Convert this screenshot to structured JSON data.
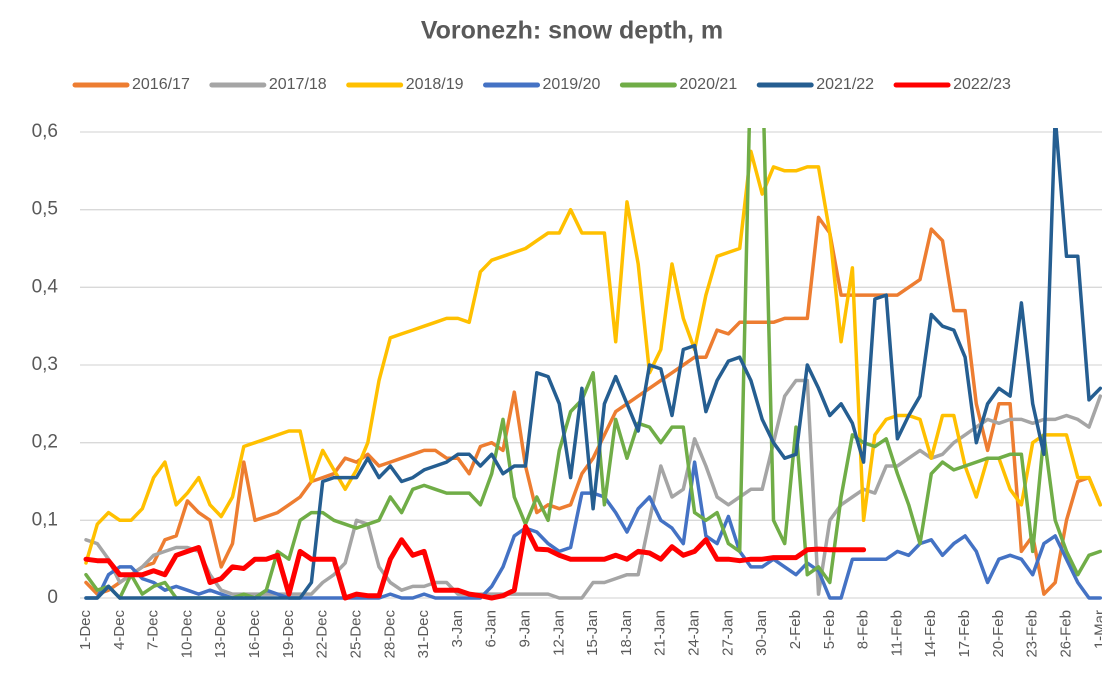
{
  "chart_data": {
    "type": "line",
    "title": "Voronezh: snow depth, m",
    "categories": [
      "1-Dec",
      null,
      null,
      "4-Dec",
      null,
      null,
      "7-Dec",
      null,
      null,
      "10-Dec",
      null,
      null,
      "13-Dec",
      null,
      null,
      "16-Dec",
      null,
      null,
      "19-Dec",
      null,
      null,
      "22-Dec",
      null,
      null,
      "25-Dec",
      null,
      null,
      "28-Dec",
      null,
      null,
      "31-Dec",
      null,
      null,
      "3-Jan",
      null,
      null,
      "6-Jan",
      null,
      null,
      "9-Jan",
      null,
      null,
      "12-Jan",
      null,
      null,
      "15-Jan",
      null,
      null,
      "18-Jan",
      null,
      null,
      "21-Jan",
      null,
      null,
      "24-Jan",
      null,
      null,
      "27-Jan",
      null,
      null,
      "30-Jan",
      null,
      null,
      "2-Feb",
      null,
      null,
      "5-Feb",
      null,
      null,
      "8-Feb",
      null,
      null,
      "11-Feb",
      null,
      null,
      "14-Feb",
      null,
      null,
      "17-Feb",
      null,
      null,
      "20-Feb",
      null,
      null,
      "23-Feb",
      null,
      null,
      "26-Feb",
      null,
      null,
      "1-Mar"
    ],
    "ylim": [
      0,
      0.6
    ],
    "yticks": [
      0,
      {
        "value": 0.1,
        "label": "0,1"
      },
      {
        "value": 0.2,
        "label": "0,2"
      },
      {
        "value": 0.3,
        "label": "0,3"
      },
      {
        "value": 0.4,
        "label": "0,4"
      },
      {
        "value": 0.5,
        "label": "0,5"
      },
      {
        "value": 0.6,
        "label": "0,6"
      }
    ],
    "grid": true,
    "legend": "top",
    "series": [
      {
        "name": "2016/17",
        "color": "#ed7d31",
        "values": [
          0.02,
          0.005,
          0.01,
          0.02,
          0.03,
          0.04,
          0.045,
          0.075,
          0.08,
          0.125,
          0.11,
          0.1,
          0.04,
          0.07,
          0.175,
          0.1,
          0.105,
          0.11,
          0.12,
          0.13,
          0.15,
          0.155,
          0.16,
          0.18,
          0.175,
          0.185,
          0.17,
          0.175,
          0.18,
          0.185,
          0.19,
          0.19,
          0.18,
          0.18,
          0.16,
          0.195,
          0.2,
          0.19,
          0.265,
          0.17,
          0.11,
          0.12,
          0.115,
          0.12,
          0.16,
          0.18,
          0.21,
          0.24,
          0.25,
          0.26,
          0.27,
          0.28,
          0.29,
          0.3,
          0.31,
          0.31,
          0.345,
          0.34,
          0.355,
          0.355,
          0.355,
          0.355,
          0.36,
          0.36,
          0.36,
          0.49,
          0.47,
          0.39,
          0.39,
          0.39,
          0.39,
          0.39,
          0.39,
          0.4,
          0.41,
          0.475,
          0.46,
          0.37,
          0.37,
          0.25,
          0.19,
          0.25,
          0.25,
          0.06,
          0.08,
          0.005,
          0.02,
          0.1,
          0.15,
          0.155,
          0.12
        ]
      },
      {
        "name": "2017/18",
        "color": "#a5a5a5",
        "values": [
          0.075,
          0.07,
          0.05,
          0.02,
          0.03,
          0.04,
          0.055,
          0.06,
          0.065,
          0.065,
          0.06,
          0.03,
          0.01,
          0.005,
          0.005,
          0.005,
          0.005,
          0.005,
          0.005,
          0.005,
          0.005,
          0.02,
          0.03,
          0.045,
          0.1,
          0.095,
          0.04,
          0.02,
          0.01,
          0.015,
          0.015,
          0.02,
          0.02,
          0.005,
          0.005,
          0.005,
          0.005,
          0.005,
          0.005,
          0.005,
          0.005,
          0.005,
          0,
          0,
          0,
          0.02,
          0.02,
          0.025,
          0.03,
          0.03,
          0.1,
          0.17,
          0.13,
          0.14,
          0.205,
          0.17,
          0.13,
          0.12,
          0.13,
          0.14,
          0.14,
          0.2,
          0.26,
          0.28,
          0.28,
          0.005,
          0.1,
          0.12,
          0.13,
          0.14,
          0.135,
          0.17,
          0.17,
          0.18,
          0.19,
          0.18,
          0.185,
          0.2,
          0.21,
          0.22,
          0.23,
          0.225,
          0.23,
          0.23,
          0.225,
          0.23,
          0.23,
          0.235,
          0.23,
          0.22,
          0.26
        ]
      },
      {
        "name": "2018/19",
        "color": "#ffc000",
        "values": [
          0.045,
          0.095,
          0.11,
          0.1,
          0.1,
          0.115,
          0.155,
          0.175,
          0.12,
          0.135,
          0.155,
          0.12,
          0.105,
          0.13,
          0.195,
          0.2,
          0.205,
          0.21,
          0.215,
          0.215,
          0.15,
          0.19,
          0.165,
          0.14,
          0.165,
          0.2,
          0.28,
          0.335,
          0.34,
          0.345,
          0.35,
          0.355,
          0.36,
          0.36,
          0.355,
          0.42,
          0.435,
          0.44,
          0.445,
          0.45,
          0.46,
          0.47,
          0.47,
          0.5,
          0.47,
          0.47,
          0.47,
          0.33,
          0.51,
          0.43,
          0.29,
          0.32,
          0.43,
          0.36,
          0.32,
          0.39,
          0.44,
          0.445,
          0.45,
          0.575,
          0.52,
          0.555,
          0.55,
          0.55,
          0.555,
          0.555,
          0.47,
          0.33,
          0.425,
          0.1,
          0.21,
          0.23,
          0.235,
          0.235,
          0.23,
          0.18,
          0.235,
          0.235,
          0.17,
          0.13,
          0.18,
          0.18,
          0.14,
          0.12,
          0.2,
          0.21,
          0.21,
          0.21,
          0.155,
          0.155,
          0.12
        ]
      },
      {
        "name": "2019/20",
        "color": "#4472c4",
        "values": [
          0,
          0,
          0.03,
          0.04,
          0.04,
          0.025,
          0.02,
          0.01,
          0.015,
          0.01,
          0.005,
          0.01,
          0.005,
          0,
          0,
          0,
          0.01,
          0.005,
          0,
          0,
          0,
          0,
          0,
          0,
          0,
          0,
          0,
          0.005,
          0,
          0,
          0.005,
          0,
          0,
          0,
          0,
          0,
          0.015,
          0.04,
          0.08,
          0.09,
          0.085,
          0.07,
          0.06,
          0.065,
          0.135,
          0.135,
          0.13,
          0.11,
          0.085,
          0.115,
          0.13,
          0.1,
          0.09,
          0.07,
          0.175,
          0.08,
          0.07,
          0.105,
          0.06,
          0.04,
          0.04,
          0.05,
          0.04,
          0.03,
          0.045,
          0.035,
          0,
          0,
          0.05,
          0.05,
          0.05,
          0.05,
          0.06,
          0.055,
          0.07,
          0.075,
          0.055,
          0.07,
          0.08,
          0.06,
          0.02,
          0.05,
          0.055,
          0.05,
          0.03,
          0.07,
          0.08,
          0.05,
          0.02,
          0,
          0
        ]
      },
      {
        "name": "2020/21",
        "color": "#70ad47",
        "values": [
          0.03,
          0.01,
          0.015,
          0,
          0.03,
          0.005,
          0.015,
          0.02,
          0,
          0,
          0,
          0,
          0,
          0,
          0.005,
          0,
          0.01,
          0.06,
          0.05,
          0.1,
          0.11,
          0.11,
          0.1,
          0.095,
          0.09,
          0.095,
          0.1,
          0.13,
          0.11,
          0.14,
          0.145,
          0.14,
          0.135,
          0.135,
          0.135,
          0.12,
          0.16,
          0.23,
          0.13,
          0.095,
          0.13,
          0.1,
          0.19,
          0.24,
          0.255,
          0.29,
          0.12,
          0.23,
          0.18,
          0.225,
          0.22,
          0.2,
          0.22,
          0.22,
          0.11,
          0.1,
          0.11,
          0.07,
          0.06,
          0.7,
          0.7,
          0.1,
          0.07,
          0.22,
          0.03,
          0.04,
          0.02,
          0.13,
          0.21,
          0.2,
          0.195,
          0.205,
          0.16,
          0.12,
          0.07,
          0.16,
          0.175,
          0.165,
          0.17,
          0.175,
          0.18,
          0.18,
          0.185,
          0.185,
          0.06,
          0.21,
          0.1,
          0.06,
          0.03,
          0.055,
          0.06
        ]
      },
      {
        "name": "2021/22",
        "color": "#255e91",
        "values": [
          0,
          0,
          0.015,
          0,
          0,
          0,
          0,
          0,
          0,
          0,
          0,
          0,
          0,
          0,
          0,
          0,
          0,
          0,
          0,
          0,
          0.02,
          0.15,
          0.155,
          0.155,
          0.155,
          0.18,
          0.155,
          0.17,
          0.15,
          0.155,
          0.165,
          0.17,
          0.175,
          0.185,
          0.185,
          0.17,
          0.185,
          0.16,
          0.17,
          0.17,
          0.29,
          0.285,
          0.25,
          0.155,
          0.27,
          0.115,
          0.25,
          0.285,
          0.25,
          0.215,
          0.3,
          0.295,
          0.235,
          0.32,
          0.325,
          0.24,
          0.28,
          0.305,
          0.31,
          0.28,
          0.23,
          0.2,
          0.18,
          0.185,
          0.3,
          0.27,
          0.235,
          0.25,
          0.225,
          0.175,
          0.385,
          0.39,
          0.205,
          0.235,
          0.26,
          0.365,
          0.35,
          0.345,
          0.31,
          0.2,
          0.25,
          0.27,
          0.26,
          0.38,
          0.25,
          0.185,
          0.62,
          0.44,
          0.44,
          0.255,
          0.27
        ]
      },
      {
        "name": "2022/23",
        "color": "#ff0000",
        "values": [
          0.05,
          0.048,
          0.048,
          0.03,
          0.03,
          0.03,
          0.035,
          0.03,
          0.055,
          0.06,
          0.065,
          0.02,
          0.025,
          0.04,
          0.038,
          0.05,
          0.05,
          0.055,
          0.005,
          0.06,
          0.05,
          0.05,
          0.05,
          0,
          0.005,
          0.003,
          0.003,
          0.05,
          0.075,
          0.055,
          0.06,
          0.01,
          0.01,
          0.01,
          0.005,
          0.003,
          0,
          0.003,
          0.01,
          0.092,
          0.063,
          0.062,
          0.055,
          0.05,
          0.05,
          0.05,
          0.05,
          0.055,
          0.05,
          0.06,
          0.058,
          0.05,
          0.066,
          0.055,
          0.06,
          0.075,
          0.05,
          0.05,
          0.048,
          0.05,
          0.05,
          0.052,
          0.052,
          0.052,
          0.062,
          0.063,
          0.062,
          0.062,
          0.062,
          0.062,
          null,
          null,
          null,
          null,
          null,
          null,
          null,
          null,
          null,
          null,
          null,
          null,
          null,
          null,
          null,
          null,
          null,
          null,
          null,
          null,
          null
        ]
      }
    ]
  }
}
